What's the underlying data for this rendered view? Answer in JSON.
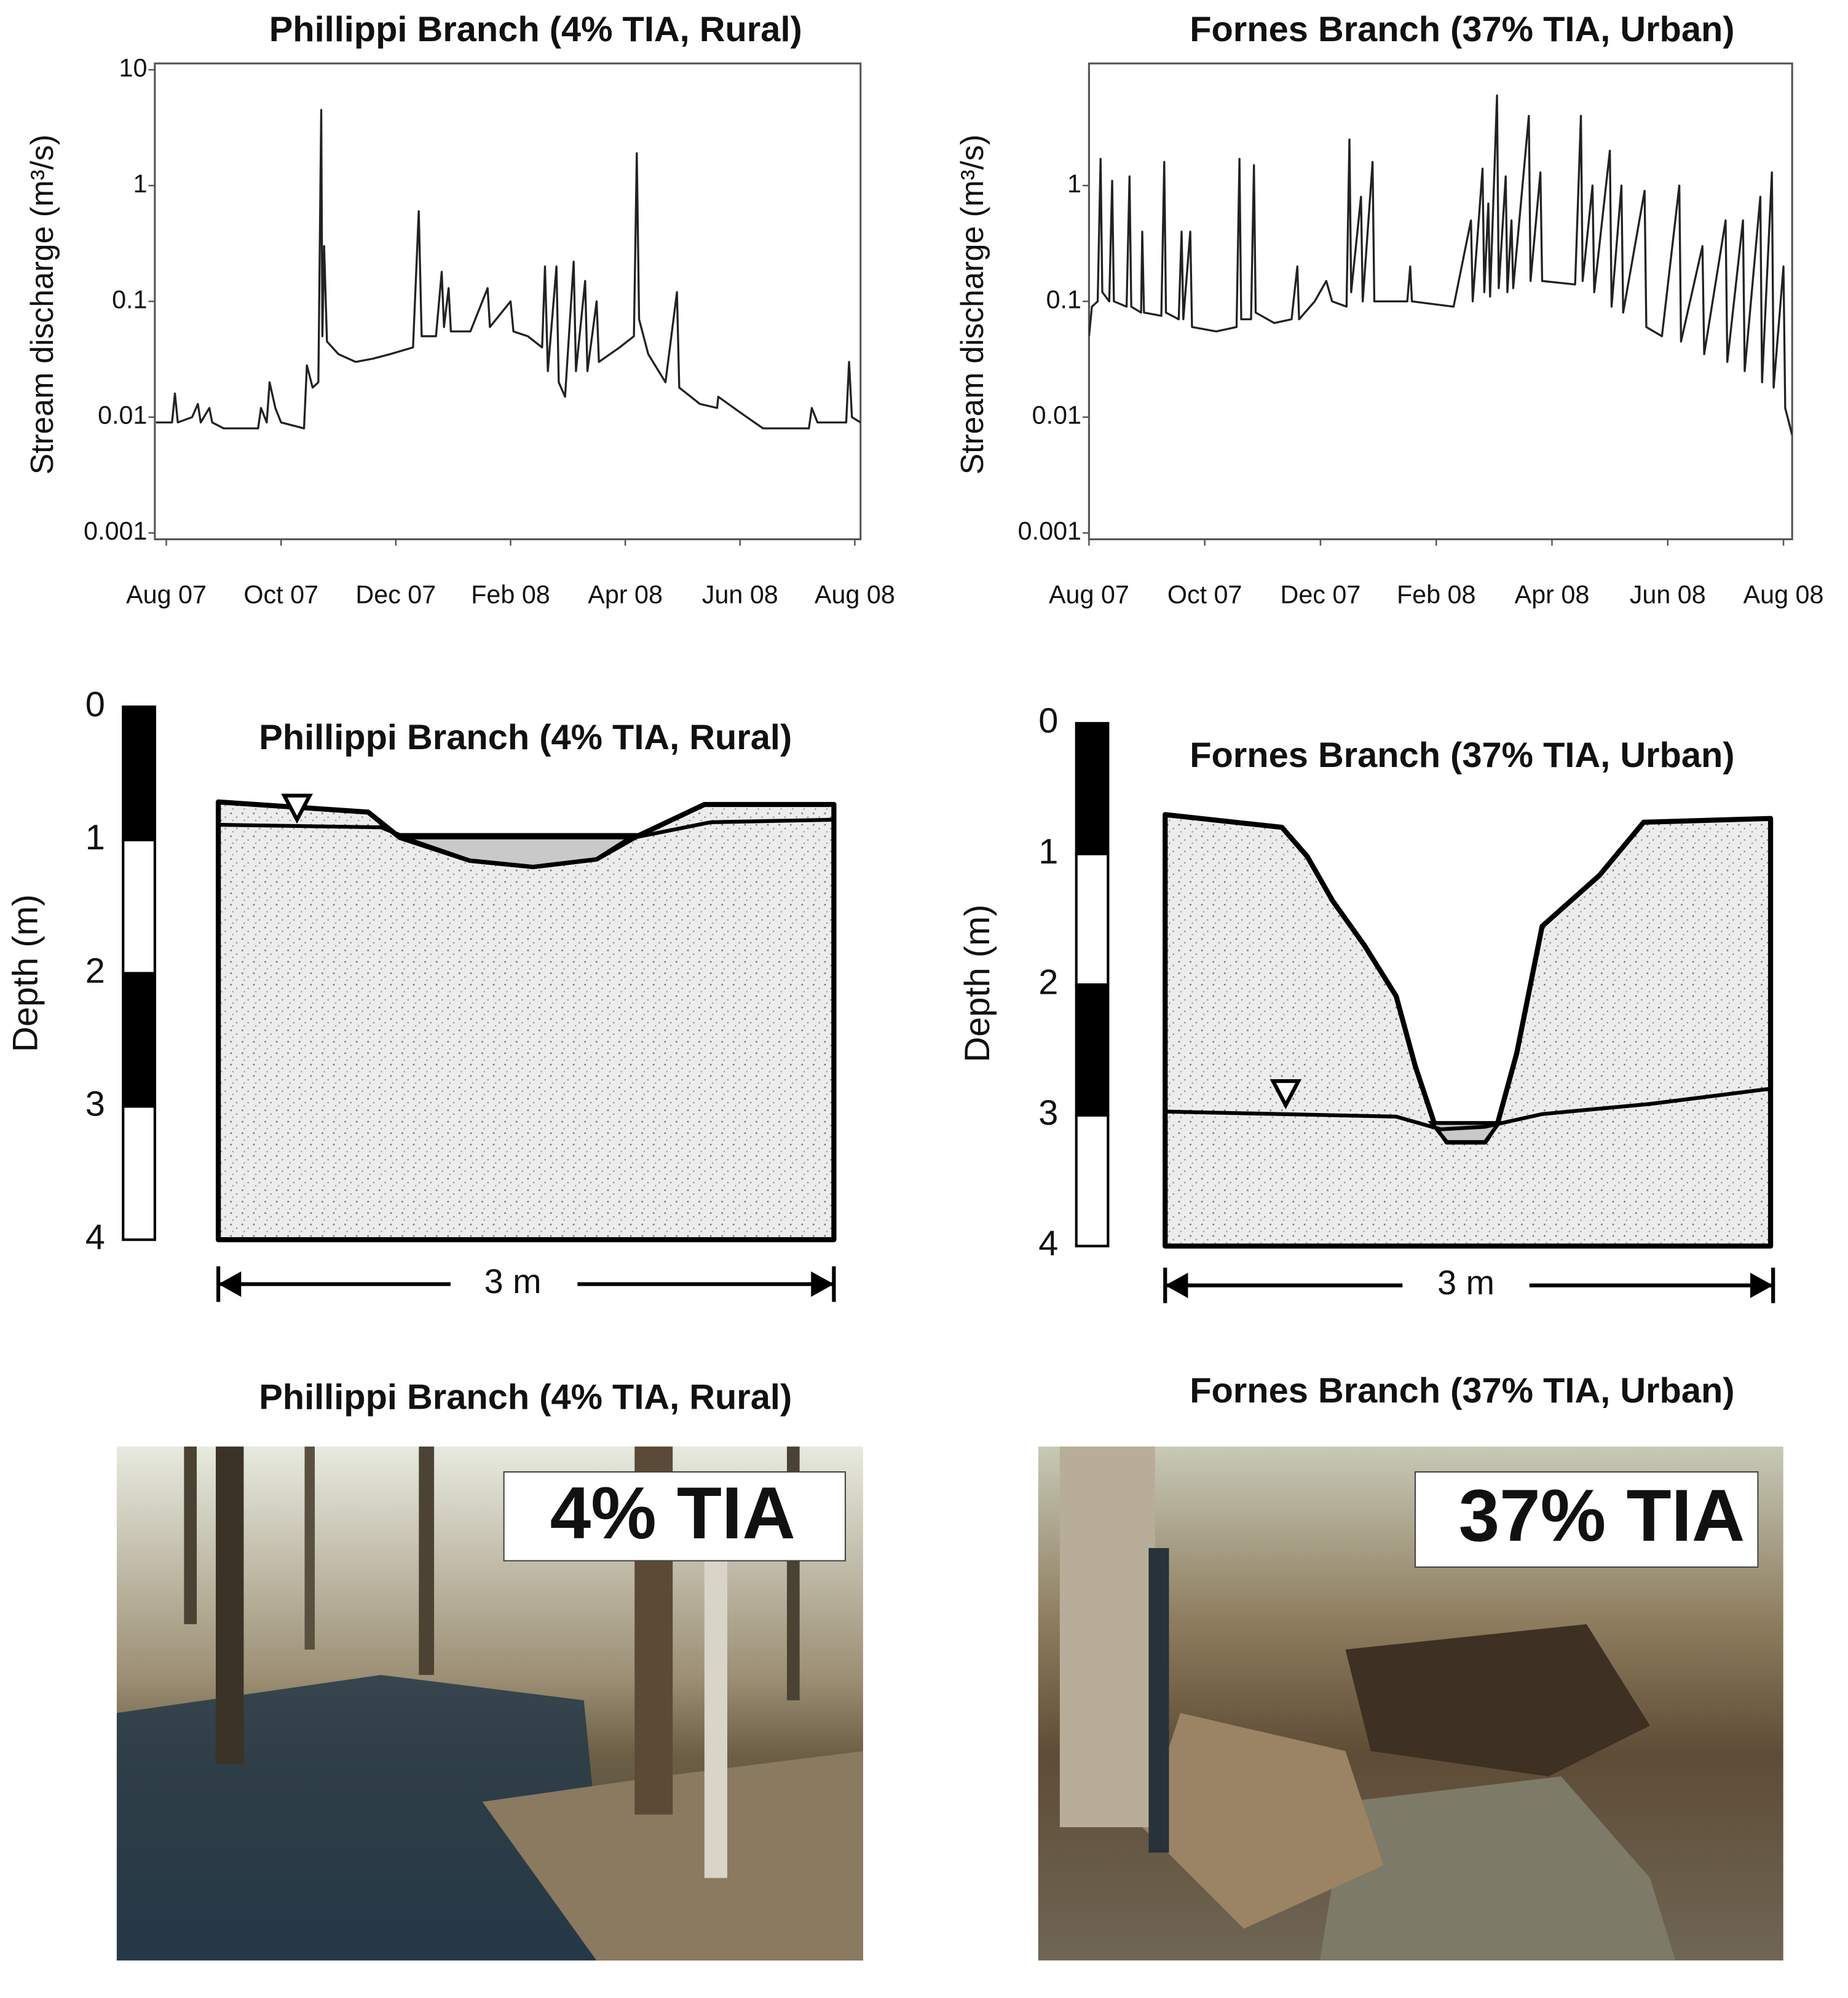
{
  "chart_data": [
    {
      "type": "line",
      "title": "Phillippi Branch (4% TIA, Rural)",
      "ylabel": "Stream discharge (m³/s)",
      "color": "#222222",
      "log_scale": true,
      "xlim": [
        -0.2,
        12.1
      ],
      "ylim": [
        0.001,
        10
      ],
      "xticks": [
        {
          "value": 0,
          "label": "Aug 07"
        },
        {
          "value": 2,
          "label": "Oct 07"
        },
        {
          "value": 4,
          "label": "Dec 07"
        },
        {
          "value": 6,
          "label": "Feb 08"
        },
        {
          "value": 8,
          "label": "Apr 08"
        },
        {
          "value": 10,
          "label": "Jun 08"
        },
        {
          "value": 12,
          "label": "Aug 08"
        }
      ],
      "yticks": [
        0.001,
        0.01,
        0.1,
        1,
        10
      ],
      "x": [
        -0.18,
        0.1,
        0.15,
        0.2,
        0.45,
        0.55,
        0.6,
        0.75,
        0.8,
        1.0,
        1.6,
        1.65,
        1.75,
        1.8,
        1.9,
        2.0,
        2.4,
        2.45,
        2.55,
        2.65,
        2.7,
        2.72,
        2.75,
        2.8,
        3.0,
        3.3,
        3.6,
        3.9,
        4.3,
        4.4,
        4.45,
        4.7,
        4.8,
        4.84,
        4.92,
        4.96,
        5.3,
        5.6,
        5.64,
        6.0,
        6.05,
        6.3,
        6.55,
        6.6,
        6.65,
        6.8,
        6.84,
        6.95,
        7.1,
        7.14,
        7.3,
        7.34,
        7.5,
        7.54,
        7.9,
        8.15,
        8.2,
        8.24,
        8.4,
        8.7,
        8.9,
        8.94,
        9.3,
        9.6,
        9.62,
        10.0,
        10.4,
        11.2,
        11.25,
        11.35,
        11.85,
        11.9,
        11.95,
        12.1
      ],
      "values": [
        0.009,
        0.009,
        0.016,
        0.009,
        0.01,
        0.013,
        0.009,
        0.012,
        0.009,
        0.008,
        0.008,
        0.012,
        0.009,
        0.02,
        0.012,
        0.009,
        0.008,
        0.028,
        0.018,
        0.02,
        4.5,
        0.05,
        0.3,
        0.045,
        0.035,
        0.03,
        0.032,
        0.035,
        0.04,
        0.6,
        0.05,
        0.05,
        0.18,
        0.06,
        0.13,
        0.055,
        0.055,
        0.13,
        0.06,
        0.1,
        0.055,
        0.05,
        0.04,
        0.2,
        0.025,
        0.2,
        0.02,
        0.015,
        0.22,
        0.025,
        0.15,
        0.025,
        0.1,
        0.03,
        0.04,
        0.05,
        1.9,
        0.07,
        0.035,
        0.02,
        0.12,
        0.018,
        0.013,
        0.012,
        0.015,
        0.011,
        0.008,
        0.008,
        0.012,
        0.009,
        0.009,
        0.03,
        0.01,
        0.009
      ]
    },
    {
      "type": "line",
      "title": "Fornes Branch (37% TIA, Urban)",
      "ylabel": "Stream discharge (m³/s)",
      "color": "#222222",
      "log_scale": true,
      "xlim": [
        0,
        12.15
      ],
      "ylim": [
        0.001,
        10
      ],
      "xticks": [
        {
          "value": 0,
          "label": "Aug 07"
        },
        {
          "value": 2,
          "label": "Oct 07"
        },
        {
          "value": 4,
          "label": "Dec 07"
        },
        {
          "value": 6,
          "label": "Feb 08"
        },
        {
          "value": 8,
          "label": "Apr 08"
        },
        {
          "value": 10,
          "label": "Jun 08"
        },
        {
          "value": 12,
          "label": "Aug 08"
        }
      ],
      "yticks": [
        0.001,
        0.01,
        0.1,
        1
      ],
      "x": [
        0,
        0.05,
        0.15,
        0.2,
        0.23,
        0.35,
        0.4,
        0.43,
        0.65,
        0.7,
        0.73,
        0.9,
        0.92,
        0.95,
        1.25,
        1.3,
        1.33,
        1.55,
        1.6,
        1.63,
        1.75,
        1.78,
        2.2,
        2.55,
        2.6,
        2.63,
        2.8,
        2.85,
        2.88,
        3.2,
        3.5,
        3.6,
        3.63,
        3.9,
        4.1,
        4.2,
        4.45,
        4.5,
        4.53,
        4.7,
        4.73,
        4.9,
        4.93,
        5.5,
        5.55,
        5.58,
        6.3,
        6.6,
        6.63,
        6.8,
        6.83,
        6.9,
        6.93,
        7.05,
        7.08,
        7.2,
        7.23,
        7.3,
        7.33,
        7.6,
        7.63,
        7.8,
        7.83,
        8.4,
        8.5,
        8.53,
        8.7,
        8.73,
        9.0,
        9.03,
        9.2,
        9.23,
        9.6,
        9.63,
        9.9,
        10.2,
        10.23,
        10.6,
        10.63,
        11.0,
        11.03,
        11.3,
        11.33,
        11.6,
        11.63,
        11.8,
        11.83,
        12.0,
        12.03,
        12.15
      ],
      "values": [
        0.05,
        0.09,
        0.1,
        1.7,
        0.12,
        0.1,
        1.1,
        0.1,
        0.09,
        1.2,
        0.09,
        0.08,
        0.4,
        0.08,
        0.075,
        1.6,
        0.08,
        0.07,
        0.4,
        0.07,
        0.4,
        0.06,
        0.055,
        0.06,
        1.7,
        0.07,
        0.07,
        1.5,
        0.08,
        0.065,
        0.07,
        0.2,
        0.07,
        0.1,
        0.15,
        0.1,
        0.09,
        2.5,
        0.12,
        0.8,
        0.1,
        1.6,
        0.1,
        0.1,
        0.2,
        0.1,
        0.09,
        0.5,
        0.1,
        1.4,
        0.12,
        0.7,
        0.11,
        6.0,
        0.13,
        1.2,
        0.12,
        0.5,
        0.13,
        4.0,
        0.15,
        1.3,
        0.15,
        0.14,
        4.0,
        0.15,
        1.0,
        0.12,
        2.0,
        0.09,
        1.0,
        0.08,
        0.9,
        0.06,
        0.05,
        1.0,
        0.045,
        0.3,
        0.035,
        0.5,
        0.03,
        0.5,
        0.025,
        0.8,
        0.02,
        1.3,
        0.018,
        0.2,
        0.012,
        0.007
      ]
    }
  ],
  "cross_sections": [
    {
      "title": "Phillippi Branch (4% TIA, Rural)",
      "depth_label": "Depth (m)",
      "depth_ticks": [
        0,
        1,
        2,
        3,
        4
      ],
      "width_label": "3 m"
    },
    {
      "title": "Fornes Branch (37% TIA, Urban)",
      "depth_label": "Depth (m)",
      "depth_ticks": [
        0,
        1,
        2,
        3,
        4
      ],
      "width_label": "3 m"
    }
  ],
  "photos": [
    {
      "title": "Phillippi Branch (4% TIA, Rural)",
      "label": "4% TIA"
    },
    {
      "title": "Fornes Branch (37% TIA, Urban)",
      "label": "37% TIA"
    }
  ]
}
